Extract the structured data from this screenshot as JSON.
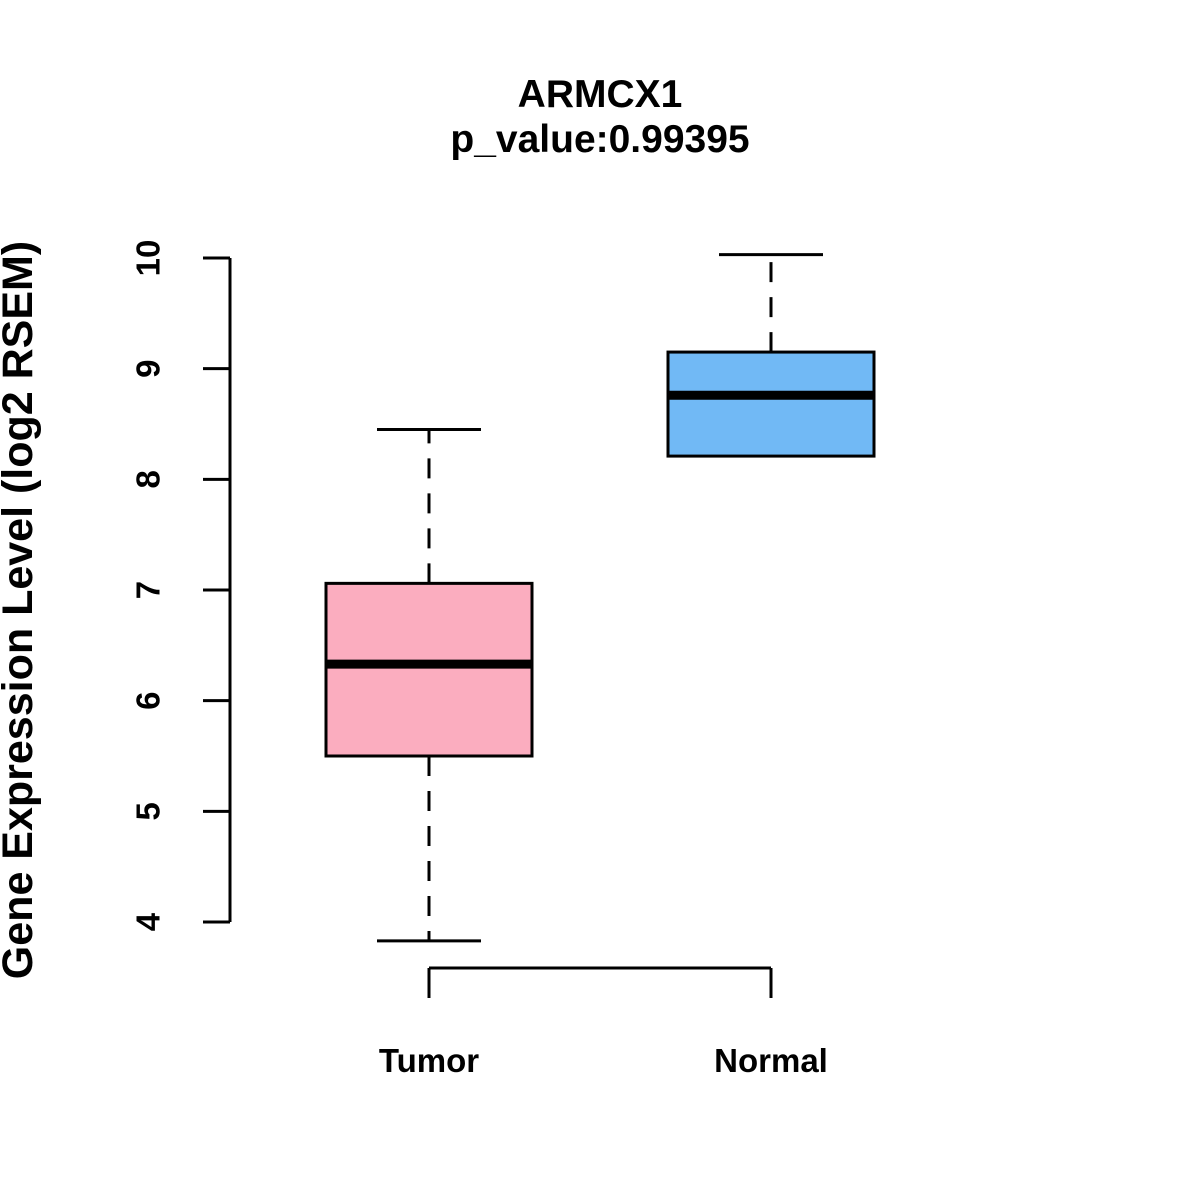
{
  "chart_data": {
    "type": "boxplot",
    "title": "ARMCX1",
    "subtitle": "p_value:0.99395",
    "ylabel": "Gene Expression Level (log2 RSEM)",
    "xlabel": "",
    "categories": [
      "Tumor",
      "Normal"
    ],
    "yticks": [
      4,
      5,
      6,
      7,
      8,
      9,
      10
    ],
    "ylim": [
      3.7,
      10.15
    ],
    "grid": false,
    "legend": "none",
    "series": [
      {
        "name": "Tumor",
        "color": "#FBADBF",
        "min": 3.83,
        "q1": 5.5,
        "median": 6.33,
        "q3": 7.06,
        "max": 8.45,
        "outliers": []
      },
      {
        "name": "Normal",
        "color": "#71B9F5",
        "min": 8.21,
        "q1": 8.21,
        "median": 8.76,
        "q3": 9.15,
        "max": 10.03,
        "outliers": []
      }
    ],
    "colors": {
      "box_border": "#000000",
      "median": "#000000",
      "axis": "#000000",
      "text": "#000000",
      "background": "#FFFFFF"
    }
  }
}
